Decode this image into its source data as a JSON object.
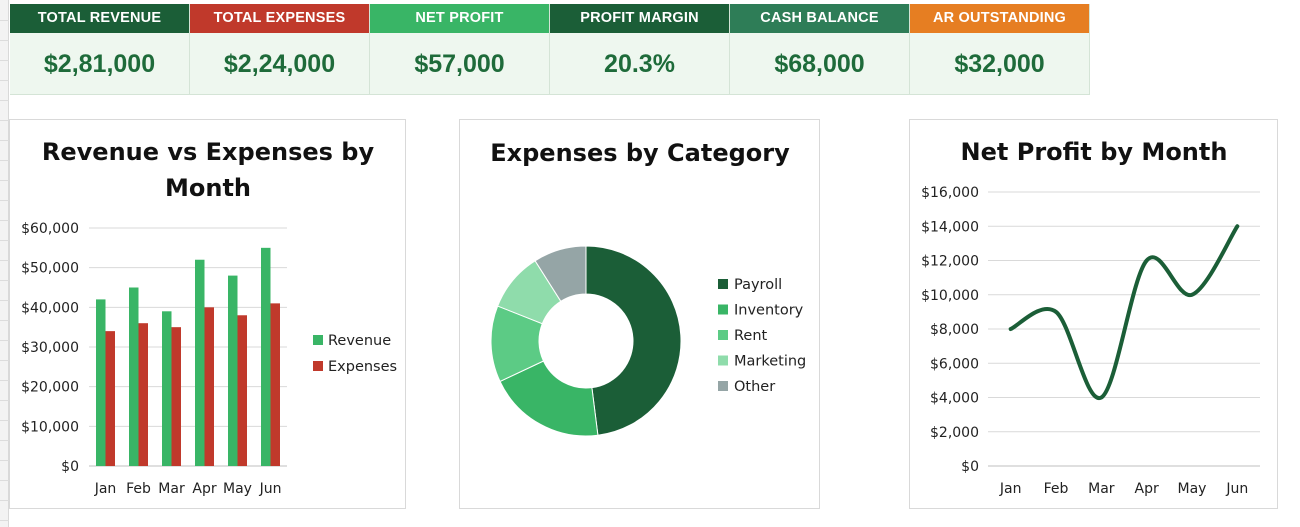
{
  "kpis": [
    {
      "label": "TOTAL REVENUE",
      "value": "$2,81,000",
      "color": "#1b5e37"
    },
    {
      "label": "TOTAL EXPENSES",
      "value": "$2,24,000",
      "color": "#c0392b"
    },
    {
      "label": "NET PROFIT",
      "value": "$57,000",
      "color": "#39b566"
    },
    {
      "label": "PROFIT MARGIN",
      "value": "20.3%",
      "color": "#1b5e37"
    },
    {
      "label": "CASH BALANCE",
      "value": "$68,000",
      "color": "#2e7d57"
    },
    {
      "label": "AR OUTSTANDING",
      "value": "$32,000",
      "color": "#e67e22"
    }
  ],
  "chart_data": [
    {
      "type": "bar",
      "title": "Revenue vs Expenses by Month",
      "categories": [
        "Jan",
        "Feb",
        "Mar",
        "Apr",
        "May",
        "Jun"
      ],
      "series": [
        {
          "name": "Revenue",
          "values": [
            42000,
            45000,
            39000,
            52000,
            48000,
            55000
          ],
          "color": "#39b566"
        },
        {
          "name": "Expenses",
          "values": [
            34000,
            36000,
            35000,
            40000,
            38000,
            41000
          ],
          "color": "#c0392b"
        }
      ],
      "ylim": [
        0,
        60000
      ],
      "yticks": [
        "$0",
        "$10,000",
        "$20,000",
        "$30,000",
        "$40,000",
        "$50,000",
        "$60,000"
      ],
      "grid": true,
      "legend": "right"
    },
    {
      "type": "pie",
      "title": "Expenses by Category",
      "donut": true,
      "slices": [
        {
          "name": "Payroll",
          "value": 48,
          "color": "#1b5e37"
        },
        {
          "name": "Inventory",
          "value": 20,
          "color": "#39b566"
        },
        {
          "name": "Rent",
          "value": 13,
          "color": "#5ccb85"
        },
        {
          "name": "Marketing",
          "value": 10,
          "color": "#8fdcab"
        },
        {
          "name": "Other",
          "value": 9,
          "color": "#95a5a6"
        }
      ],
      "legend": "right"
    },
    {
      "type": "line",
      "title": "Net Profit by Month",
      "categories": [
        "Jan",
        "Feb",
        "Mar",
        "Apr",
        "May",
        "Jun"
      ],
      "series": [
        {
          "name": "Net Profit",
          "values": [
            8000,
            9000,
            4000,
            12000,
            10000,
            14000
          ],
          "color": "#1b5e37"
        }
      ],
      "ylim": [
        0,
        16000
      ],
      "yticks": [
        "$0",
        "$2,000",
        "$4,000",
        "$6,000",
        "$8,000",
        "$10,000",
        "$12,000",
        "$14,000",
        "$16,000"
      ],
      "smooth": true,
      "grid": true,
      "legend": "none"
    }
  ]
}
